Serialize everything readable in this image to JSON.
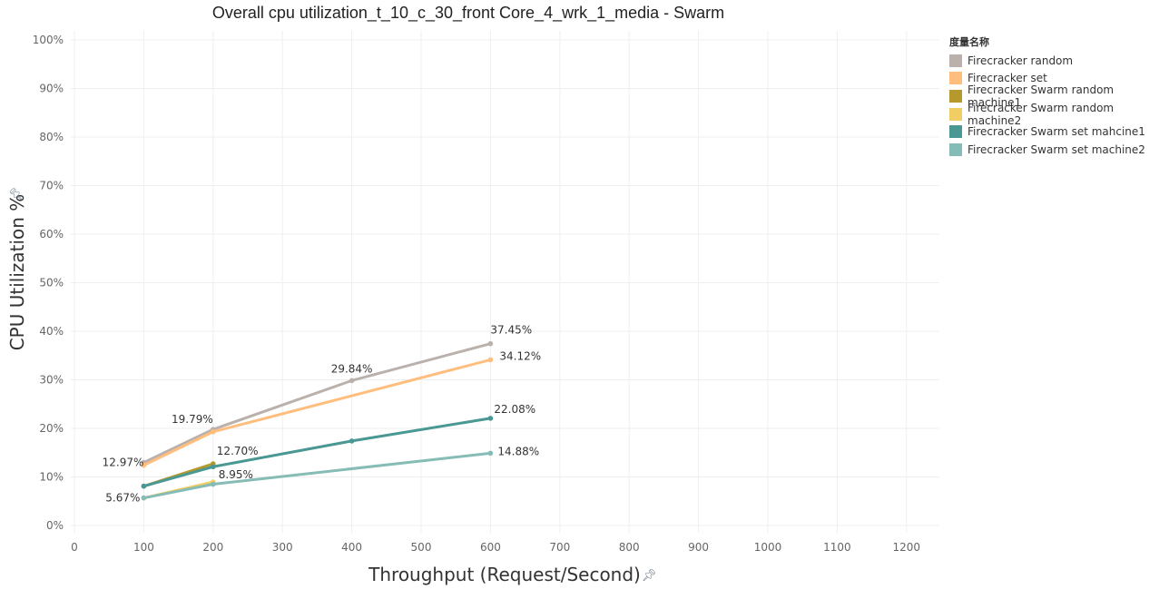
{
  "chart_data": {
    "type": "line",
    "title": "Overall cpu utilization_t_10_c_30_front Core_4_wrk_1_media - Swarm",
    "xlabel": "Throughput (Request/Second)",
    "ylabel": "CPU Utilization %",
    "xlim": [
      0,
      1250
    ],
    "ylim": [
      0,
      1
    ],
    "x_ticks": [
      0,
      100,
      200,
      300,
      400,
      500,
      600,
      700,
      800,
      900,
      1000,
      1100,
      1200
    ],
    "y_ticks": [
      0,
      0.1,
      0.2,
      0.3,
      0.4,
      0.5,
      0.6,
      0.7,
      0.8,
      0.9,
      1.0
    ],
    "x_tick_labels": [
      "0",
      "100",
      "200",
      "300",
      "400",
      "500",
      "600",
      "700",
      "800",
      "900",
      "1000",
      "1100",
      "1200"
    ],
    "y_tick_labels": [
      "0%",
      "10%",
      "20%",
      "30%",
      "40%",
      "50%",
      "60%",
      "70%",
      "80%",
      "90%",
      "100%"
    ],
    "legend_title": "度量名称",
    "legend_position": "right",
    "grid": true,
    "series": [
      {
        "name": "Firecracker random",
        "color": "#bab0ac",
        "x": [
          100,
          200,
          400,
          600
        ],
        "y": [
          0.1297,
          0.1979,
          0.2984,
          0.3745
        ]
      },
      {
        "name": "Firecracker set",
        "color": "#ffbe7d",
        "x": [
          100,
          200,
          600
        ],
        "y": [
          0.124,
          0.193,
          0.3412
        ]
      },
      {
        "name": "Firecracker Swarm random machine1",
        "color": "#b6992d",
        "x": [
          100,
          200
        ],
        "y": [
          0.081,
          0.127
        ]
      },
      {
        "name": "Firecracker Swarm random machine2",
        "color": "#f1ce63",
        "x": [
          100,
          200
        ],
        "y": [
          0.0567,
          0.0895
        ]
      },
      {
        "name": "Firecracker Swarm set mahcine1",
        "color": "#499894",
        "x": [
          100,
          200,
          400,
          600
        ],
        "y": [
          0.081,
          0.121,
          0.174,
          0.2208
        ]
      },
      {
        "name": "Firecracker Swarm set machine2",
        "color": "#86bcb6",
        "x": [
          100,
          200,
          600
        ],
        "y": [
          0.0567,
          0.085,
          0.1488
        ]
      }
    ],
    "annotations": [
      {
        "text": "12.97%",
        "x": 100,
        "y": 0.1297,
        "anchor": "end",
        "dx": 0,
        "dy": 4
      },
      {
        "text": "5.67%",
        "x": 100,
        "y": 0.0567,
        "anchor": "end",
        "dx": -4,
        "dy": 4
      },
      {
        "text": "19.79%",
        "x": 200,
        "y": 0.1979,
        "anchor": "end",
        "dx": 0,
        "dy": -7
      },
      {
        "text": "12.70%",
        "x": 200,
        "y": 0.127,
        "anchor": "start",
        "dx": 4,
        "dy": -10
      },
      {
        "text": "8.95%",
        "x": 200,
        "y": 0.0895,
        "anchor": "start",
        "dx": 6,
        "dy": -4
      },
      {
        "text": "29.84%",
        "x": 400,
        "y": 0.2984,
        "anchor": "middle",
        "dx": 0,
        "dy": -9
      },
      {
        "text": "37.45%",
        "x": 600,
        "y": 0.3745,
        "anchor": "start",
        "dx": 0,
        "dy": -11
      },
      {
        "text": "34.12%",
        "x": 600,
        "y": 0.3412,
        "anchor": "start",
        "dx": 10,
        "dy": 0
      },
      {
        "text": "22.08%",
        "x": 600,
        "y": 0.2208,
        "anchor": "start",
        "dx": 4,
        "dy": -6
      },
      {
        "text": "14.88%",
        "x": 600,
        "y": 0.1488,
        "anchor": "start",
        "dx": 8,
        "dy": 2
      }
    ]
  }
}
